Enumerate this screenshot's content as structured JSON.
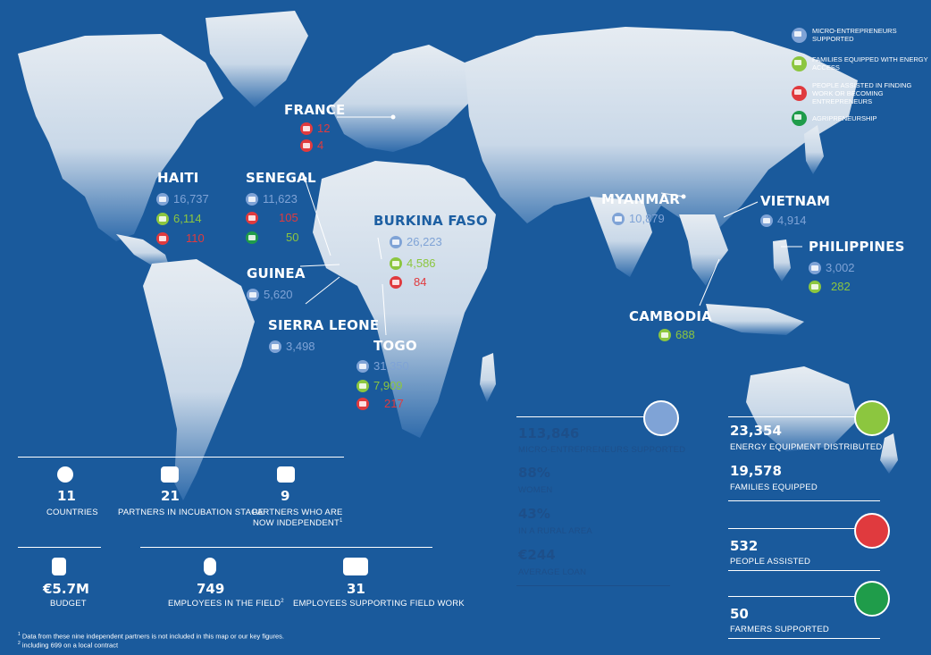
{
  "colors": {
    "ocean": "#1a5a9c",
    "land": "#dfe7ef",
    "micro": "#7fa3d6",
    "energy": "#8cc63f",
    "people": "#e03a3e",
    "agri": "#1f9c4a"
  },
  "legend": [
    {
      "icon": "micro-entrepreneurs-icon",
      "label": "MICRO-ENTREPRENEURS SUPPORTED"
    },
    {
      "icon": "energy-access-icon",
      "label": "FAMILIES EQUIPPED WITH ENERGY ACCESS"
    },
    {
      "icon": "people-assisted-icon",
      "label": "PEOPLE ASSISTED IN FINDING WORK OR BECOMING ENTREPRENEURS"
    },
    {
      "icon": "agripreneurship-icon",
      "label": "AGRIPRENEURSHIP"
    }
  ],
  "countries": {
    "france": {
      "name": "FRANCE",
      "people1": "12",
      "people2": "4"
    },
    "haiti": {
      "name": "HAITI",
      "micro": "16,737",
      "energy": "6,114",
      "people": "110"
    },
    "senegal": {
      "name": "SENEGAL",
      "micro": "11,623",
      "people": "105",
      "agri": "50"
    },
    "burkina": {
      "name": "BURKINA FASO",
      "micro": "26,223",
      "energy": "4,586",
      "people": "84"
    },
    "guinea": {
      "name": "GUINEA",
      "micro": "5,620"
    },
    "sierra": {
      "name": "SIERRA LEONE",
      "micro": "3,498"
    },
    "togo": {
      "name": "TOGO",
      "micro": "31,350",
      "energy": "7,909",
      "people": "217"
    },
    "myanmar": {
      "name": "MYANMAR",
      "micro": "10,879"
    },
    "vietnam": {
      "name": "VIETNAM",
      "micro": "4,914"
    },
    "philippines": {
      "name": "PHILIPPINES",
      "micro": "3,002",
      "energy": "282"
    },
    "cambodia": {
      "name": "CAMBODIA",
      "energy": "688"
    }
  },
  "key_figures": {
    "countries": {
      "value": "11",
      "label": "COUNTRIES"
    },
    "incubation": {
      "value": "21",
      "label": "PARTNERS IN INCUBATION STAGE"
    },
    "independent": {
      "value": "9",
      "label_1": "PARTNERS WHO ARE",
      "label_2": "NOW INDEPENDENT",
      "note": "1"
    },
    "budget": {
      "value": "€5.7M",
      "label": "BUDGET"
    },
    "field": {
      "value": "749",
      "label": "EMPLOYEES IN THE FIELD",
      "note": "2"
    },
    "support": {
      "value": "31",
      "label": "EMPLOYEES SUPPORTING FIELD WORK"
    }
  },
  "micro_panel": {
    "total": {
      "value": "113,846",
      "label": "MICRO-ENTREPRENEURS SUPPORTED"
    },
    "women": {
      "value": "88%",
      "label": "WOMEN"
    },
    "rural": {
      "value": "43%",
      "label": "IN A RURAL AREA"
    },
    "loan": {
      "value": "€244",
      "label": "AVERAGE LOAN"
    }
  },
  "energy_panel": {
    "equipment": {
      "value": "23,354",
      "label": "ENERGY EQUIPMENT DISTRIBUTED"
    },
    "families": {
      "value": "19,578",
      "label": "FAMILIES EQUIPPED"
    }
  },
  "people_panel": {
    "value": "532",
    "label": "PEOPLE ASSISTED"
  },
  "agri_panel": {
    "value": "50",
    "label": "FARMERS SUPPORTED"
  },
  "footnotes": {
    "n1_mark": "1",
    "n1": "Data from these nine independent partners is not included in this map or our key figures.",
    "n2_mark": "2",
    "n2": "including 699 on a local contract"
  }
}
